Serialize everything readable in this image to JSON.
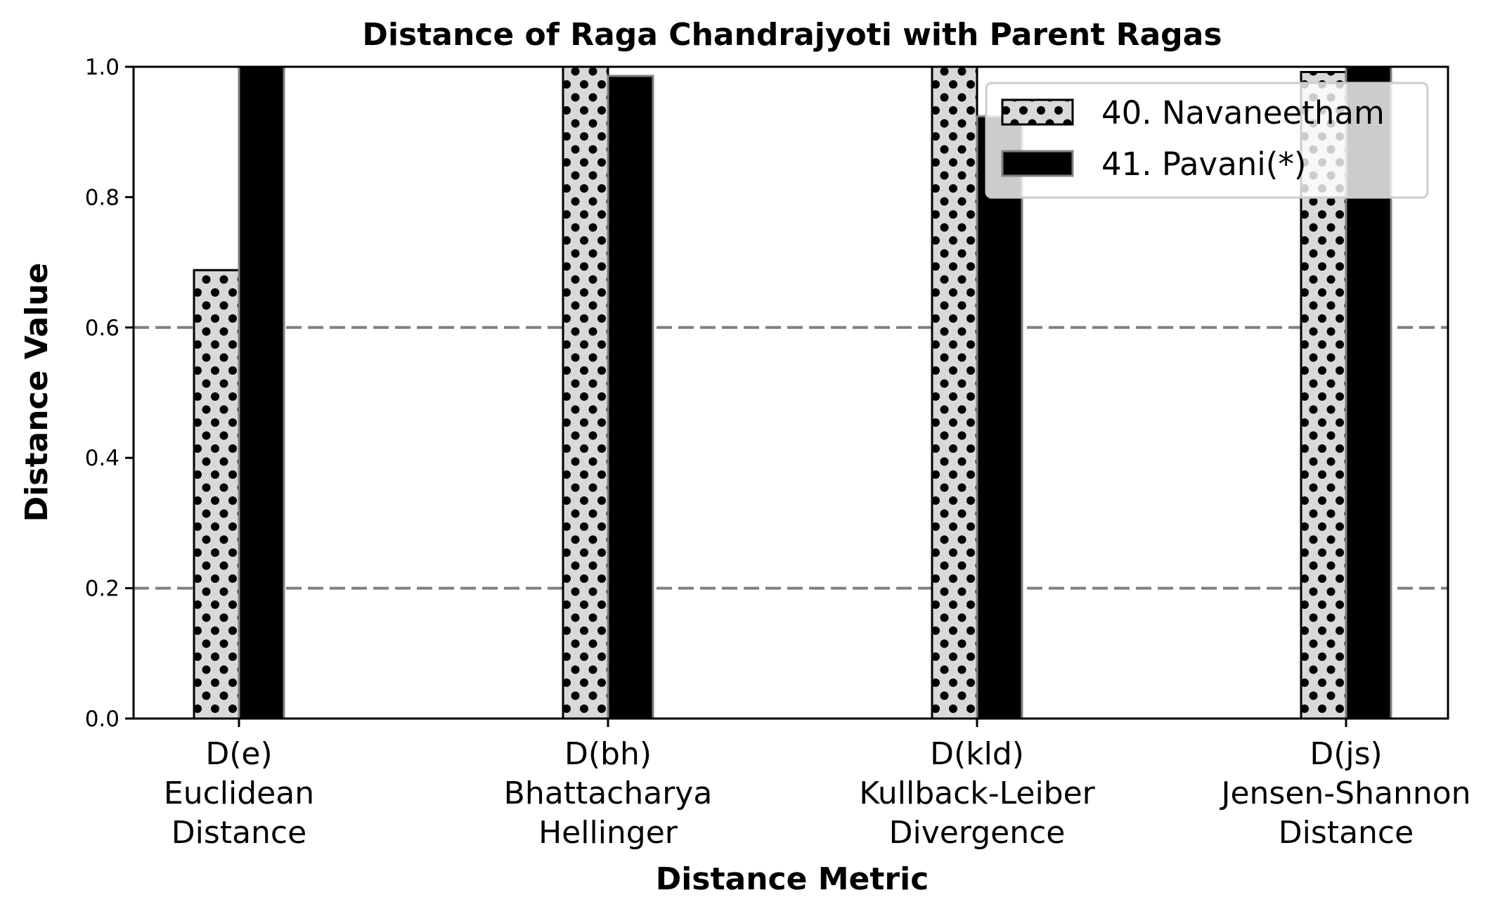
{
  "chart_data": {
    "type": "bar",
    "title": "Distance of Raga Chandrajyoti with Parent Ragas",
    "xlabel": "Distance Metric",
    "ylabel": "Distance Value",
    "ylim": [
      0,
      1.0
    ],
    "yticks": [
      "0.0",
      "0.2",
      "0.4",
      "0.6",
      "0.8",
      "1.0"
    ],
    "reference_lines": [
      0.2,
      0.6
    ],
    "categories": [
      [
        "D(e)",
        "Euclidean",
        "Distance"
      ],
      [
        "D(bh)",
        "Bhattacharya",
        "Hellinger"
      ],
      [
        "D(kld)",
        "Kullback-Leiber",
        "Divergence"
      ],
      [
        "D(js)",
        "Jensen-Shannon",
        "Distance"
      ]
    ],
    "series": [
      {
        "name": "40. Navaneetham",
        "values": [
          0.688,
          1.0,
          1.0,
          0.992
        ],
        "fill": "#d9d9d9",
        "hatch": "dots",
        "edge": "#000000"
      },
      {
        "name": "41. Pavani(*)",
        "values": [
          1.0,
          0.986,
          0.924,
          1.0
        ],
        "fill": "#000000",
        "edge": "#808080"
      }
    ],
    "legend_position": "top-right",
    "grid": false
  }
}
